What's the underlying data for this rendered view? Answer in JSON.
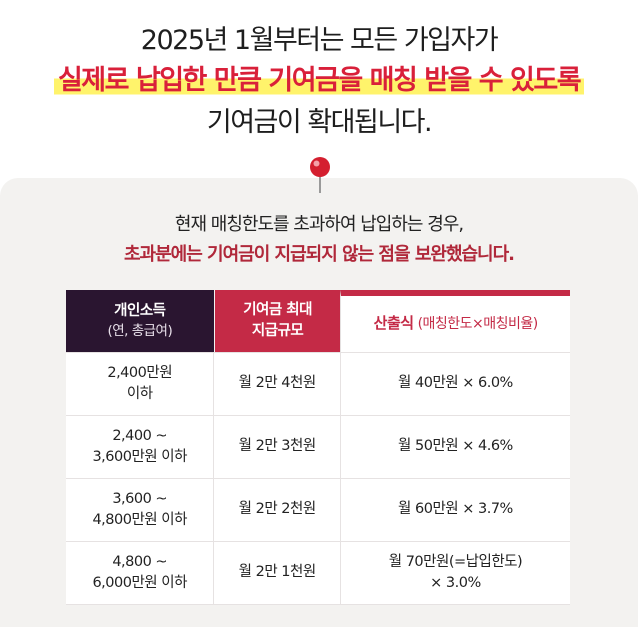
{
  "headline": {
    "line1": "2025년 1월부터는 모든 가입자가",
    "line2": "실제로 납입한 만큼 기여금을 매칭 받을 수 있도록",
    "line3": "기여금이 확대됩니다."
  },
  "intro": {
    "line1": "현재 매칭한도를 초과하여 납입하는 경우,",
    "line2": "초과분에는 기여금이 지급되지 않는 점을 보완했습니다."
  },
  "table": {
    "header": {
      "income_line1": "개인소득",
      "income_line2": "(연, 총급여)",
      "max_line1": "기여금 최대",
      "max_line2": "지급규모",
      "formula_label": "산출식",
      "formula_sub": "(매칭한도×매칭비율)"
    },
    "rows": [
      {
        "income_line1": "2,400만원",
        "income_line2": "이하",
        "max": "월 2만 4천원",
        "formula_line1": "월 40만원 × 6.0%",
        "formula_line2": ""
      },
      {
        "income_line1": "2,400 ~",
        "income_line2": "3,600만원 이하",
        "max": "월 2만 3천원",
        "formula_line1": "월 50만원 × 4.6%",
        "formula_line2": ""
      },
      {
        "income_line1": "3,600 ~",
        "income_line2": "4,800만원 이하",
        "max": "월 2만 2천원",
        "formula_line1": "월 60만원 × 3.7%",
        "formula_line2": ""
      },
      {
        "income_line1": "4,800 ~",
        "income_line2": "6,000만원 이하",
        "max": "월 2만 1천원",
        "formula_line1": "월 70만원(=납입한도)",
        "formula_line2": "× 3.0%"
      }
    ]
  },
  "colors": {
    "accent_red": "#c42a46",
    "dark_header": "#2a1530",
    "highlight_yellow": "#fff36b"
  }
}
